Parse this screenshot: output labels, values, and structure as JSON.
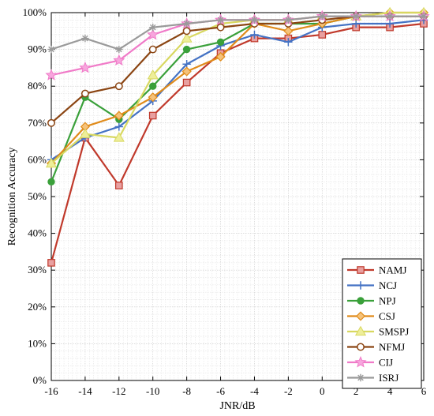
{
  "chart_data": {
    "type": "line",
    "xlabel": "JNR/dB",
    "ylabel": "Recognition Accuracy",
    "x": [
      -16,
      -14,
      -12,
      -10,
      -8,
      -6,
      -4,
      -2,
      0,
      2,
      4,
      6
    ],
    "x_tick_labels": [
      "-16",
      "-14",
      "-12",
      "-10",
      "-8",
      "-6",
      "-4",
      "-2",
      "0",
      "2",
      "4",
      "6"
    ],
    "xlim": [
      -16,
      6
    ],
    "ylim": [
      0,
      100
    ],
    "y_ticks": [
      0,
      10,
      20,
      30,
      40,
      50,
      60,
      70,
      80,
      90,
      100
    ],
    "y_tick_labels": [
      "0%",
      "10%",
      "20%",
      "30%",
      "40%",
      "50%",
      "60%",
      "70%",
      "80%",
      "90%",
      "100%"
    ],
    "grid": true,
    "legend_position": "bottom-right",
    "series": [
      {
        "name": "NAMJ",
        "color": "#c0392b",
        "marker": "square",
        "values": [
          32,
          66,
          53,
          72,
          81,
          89,
          93,
          93,
          94,
          96,
          96,
          97
        ]
      },
      {
        "name": "NCJ",
        "color": "#4472c4",
        "marker": "plus",
        "values": [
          60,
          66,
          69,
          76,
          86,
          91,
          94,
          92,
          96,
          97,
          97,
          98
        ]
      },
      {
        "name": "NPJ",
        "color": "#3aa03a",
        "marker": "circle",
        "values": [
          54,
          77,
          71,
          80,
          90,
          92,
          97,
          97,
          97,
          99,
          99,
          99
        ]
      },
      {
        "name": "CSJ",
        "color": "#e08b1a",
        "marker": "diamond",
        "values": [
          59,
          69,
          72,
          77,
          84,
          88,
          97,
          95,
          97,
          99,
          100,
          100
        ]
      },
      {
        "name": "SMSPJ",
        "color": "#d8d860",
        "marker": "triangle",
        "values": [
          59,
          67,
          66,
          83,
          93,
          97,
          98,
          98,
          99,
          99,
          100,
          100
        ]
      },
      {
        "name": "NFMJ",
        "color": "#8b4513",
        "marker": "circle-open",
        "values": [
          70,
          78,
          80,
          90,
          95,
          96,
          97,
          97,
          98,
          99,
          99,
          99
        ]
      },
      {
        "name": "CIJ",
        "color": "#f07ac8",
        "marker": "star",
        "values": [
          83,
          85,
          87,
          94,
          97,
          98,
          98,
          98,
          99,
          99,
          99,
          99
        ]
      },
      {
        "name": "ISRJ",
        "color": "#9a9a9a",
        "marker": "asterisk",
        "values": [
          90,
          93,
          90,
          96,
          97,
          98,
          98,
          98,
          99,
          99,
          99,
          99
        ]
      }
    ]
  }
}
